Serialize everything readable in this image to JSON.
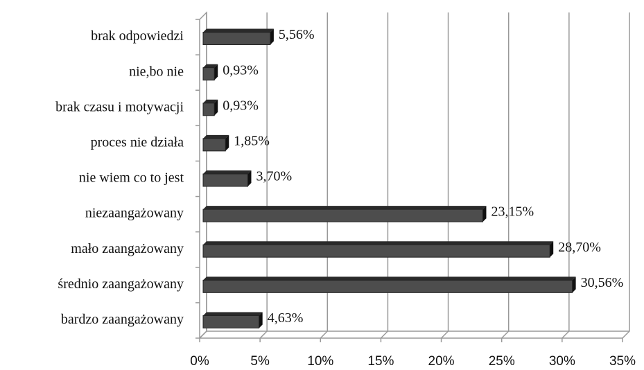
{
  "chart_data": {
    "type": "bar3d_horizontal",
    "categories": [
      "brak odpowiedzi",
      "nie,bo nie",
      "brak czasu i motywacji",
      "proces nie działa",
      "nie wiem co to jest",
      "niezaangażowany",
      "mało zaangażowany",
      "średnio zaangażowany",
      "bardzo zaangażowany"
    ],
    "values": [
      5.56,
      0.93,
      0.93,
      1.85,
      3.7,
      23.15,
      28.7,
      30.56,
      4.63
    ],
    "value_labels": [
      "5,56%",
      "0,93%",
      "0,93%",
      "1,85%",
      "3,70%",
      "23,15%",
      "28,70%",
      "30,56%",
      "4,63%"
    ],
    "color": "#4d4d4d",
    "xlim": [
      0,
      35
    ],
    "xticks": [
      {
        "value": 0,
        "label": "0%"
      },
      {
        "value": 5,
        "label": "5%"
      },
      {
        "value": 10,
        "label": "10%"
      },
      {
        "value": 15,
        "label": "15%"
      },
      {
        "value": 20,
        "label": "20%"
      },
      {
        "value": 25,
        "label": "25%"
      },
      {
        "value": 30,
        "label": "30%"
      },
      {
        "value": 35,
        "label": "35%"
      }
    ],
    "grid": true
  }
}
